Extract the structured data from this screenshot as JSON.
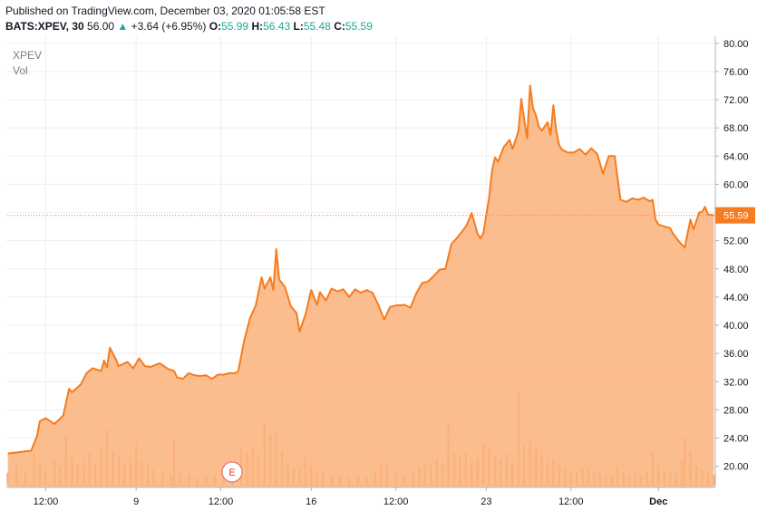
{
  "header": {
    "published": "Published on TradingView.com, December 03, 2020 01:05:58 EST",
    "symbol": "BATS:XPEV, 30",
    "last": "56.00",
    "arrow": "▲",
    "change": "+3.64 (+6.95%)",
    "open_label": "O:",
    "open": "55.99",
    "high_label": "H:",
    "high": "56.43",
    "low_label": "L:",
    "low": "55.48",
    "close_label": "C:",
    "close": "55.59"
  },
  "legend": {
    "name": "XPEV",
    "volume": "Vol"
  },
  "colors": {
    "line": "#f57c1f",
    "area": "#fbb27a",
    "up": "#26a69a",
    "grid": "#eeeeee"
  },
  "event_marker": {
    "label": "E"
  },
  "chart_data": {
    "type": "area",
    "ylim": [
      17.0,
      81.0
    ],
    "y_ticks": [
      "80.00",
      "76.00",
      "72.00",
      "68.00",
      "64.00",
      "60.00",
      "56.00",
      "52.00",
      "48.00",
      "44.00",
      "40.00",
      "36.00",
      "32.00",
      "28.00",
      "24.00",
      "20.00"
    ],
    "x_ticks": [
      "12:00",
      "9",
      "12:00",
      "16",
      "12:00",
      "23",
      "12:00",
      "Dec"
    ],
    "last_price_label": "55.59",
    "last_price": 55.59,
    "bars_count": 243,
    "x_tick_index": [
      13,
      44,
      73,
      104,
      133,
      164,
      193,
      223
    ],
    "price_points": [
      [
        0,
        21.8
      ],
      [
        8,
        22.2
      ],
      [
        10,
        24.3
      ],
      [
        11,
        26.4
      ],
      [
        13,
        26.8
      ],
      [
        16,
        26.0
      ],
      [
        19,
        27.2
      ],
      [
        21,
        31.0
      ],
      [
        22,
        30.5
      ],
      [
        25,
        31.6
      ],
      [
        27,
        33.2
      ],
      [
        29,
        33.9
      ],
      [
        32,
        33.5
      ],
      [
        33,
        35.0
      ],
      [
        34,
        34.0
      ],
      [
        35,
        36.8
      ],
      [
        37,
        35.2
      ],
      [
        38,
        34.2
      ],
      [
        41,
        34.8
      ],
      [
        43,
        33.9
      ],
      [
        45,
        35.3
      ],
      [
        47,
        34.2
      ],
      [
        49,
        34.1
      ],
      [
        52,
        34.6
      ],
      [
        55,
        33.8
      ],
      [
        57,
        33.5
      ],
      [
        58,
        32.6
      ],
      [
        60,
        32.4
      ],
      [
        62,
        33.2
      ],
      [
        64,
        32.9
      ],
      [
        66,
        32.8
      ],
      [
        68,
        32.9
      ],
      [
        70,
        32.4
      ],
      [
        72,
        33.0
      ],
      [
        74,
        33.0
      ],
      [
        76,
        33.2
      ],
      [
        78,
        33.2
      ],
      [
        79,
        33.5
      ],
      [
        81,
        37.8
      ],
      [
        83,
        41.0
      ],
      [
        85,
        42.8
      ],
      [
        87,
        46.8
      ],
      [
        88,
        45.2
      ],
      [
        90,
        46.8
      ],
      [
        91,
        45.0
      ],
      [
        92,
        50.8
      ],
      [
        93,
        46.5
      ],
      [
        95,
        45.4
      ],
      [
        97,
        42.7
      ],
      [
        99,
        41.7
      ],
      [
        100,
        39.1
      ],
      [
        102,
        41.5
      ],
      [
        104,
        45.0
      ],
      [
        106,
        42.9
      ],
      [
        107,
        44.7
      ],
      [
        109,
        43.5
      ],
      [
        111,
        45.2
      ],
      [
        113,
        44.8
      ],
      [
        115,
        45.1
      ],
      [
        117,
        44.0
      ],
      [
        119,
        45.1
      ],
      [
        121,
        44.6
      ],
      [
        123,
        45.0
      ],
      [
        125,
        44.6
      ],
      [
        127,
        42.9
      ],
      [
        129,
        40.8
      ],
      [
        131,
        42.6
      ],
      [
        133,
        42.8
      ],
      [
        136,
        42.9
      ],
      [
        138,
        42.5
      ],
      [
        140,
        44.5
      ],
      [
        142,
        46.0
      ],
      [
        144,
        46.2
      ],
      [
        146,
        47.0
      ],
      [
        148,
        47.9
      ],
      [
        150,
        48.0
      ],
      [
        152,
        51.5
      ],
      [
        154,
        52.4
      ],
      [
        157,
        54.0
      ],
      [
        159,
        55.9
      ],
      [
        161,
        53.0
      ],
      [
        162,
        52.3
      ],
      [
        163,
        53.1
      ],
      [
        165,
        58.2
      ],
      [
        166,
        62.0
      ],
      [
        167,
        63.8
      ],
      [
        168,
        63.2
      ],
      [
        170,
        65.3
      ],
      [
        172,
        66.3
      ],
      [
        173,
        65.0
      ],
      [
        175,
        67.5
      ],
      [
        176,
        72.1
      ],
      [
        177,
        69.2
      ],
      [
        178,
        66.5
      ],
      [
        179,
        74.0
      ],
      [
        180,
        70.8
      ],
      [
        181,
        69.8
      ],
      [
        182,
        68.2
      ],
      [
        183,
        67.6
      ],
      [
        185,
        68.8
      ],
      [
        186,
        67.0
      ],
      [
        187,
        71.2
      ],
      [
        188,
        67.5
      ],
      [
        189,
        65.5
      ],
      [
        190,
        64.9
      ],
      [
        192,
        64.5
      ],
      [
        194,
        64.5
      ],
      [
        196,
        65.0
      ],
      [
        198,
        64.2
      ],
      [
        200,
        65.1
      ],
      [
        202,
        64.3
      ],
      [
        204,
        61.5
      ],
      [
        206,
        64.0
      ],
      [
        208,
        64.0
      ],
      [
        210,
        57.8
      ],
      [
        212,
        57.5
      ],
      [
        214,
        58.0
      ],
      [
        216,
        57.8
      ],
      [
        218,
        58.1
      ],
      [
        220,
        57.6
      ],
      [
        221,
        57.8
      ],
      [
        222,
        55.0
      ],
      [
        223,
        54.3
      ],
      [
        225,
        54.0
      ],
      [
        227,
        53.8
      ],
      [
        228,
        53.0
      ],
      [
        230,
        51.9
      ],
      [
        232,
        51.0
      ],
      [
        234,
        55.0
      ],
      [
        235,
        53.6
      ],
      [
        237,
        56.0
      ],
      [
        238,
        56.1
      ],
      [
        239,
        56.8
      ],
      [
        240,
        55.7
      ],
      [
        242,
        55.6
      ]
    ],
    "volume_points": [
      [
        0,
        1.2
      ],
      [
        3,
        2.0
      ],
      [
        6,
        1.4
      ],
      [
        9,
        3.1
      ],
      [
        11,
        2.2
      ],
      [
        13,
        1.5
      ],
      [
        16,
        2.5
      ],
      [
        18,
        1.8
      ],
      [
        20,
        4.6
      ],
      [
        22,
        2.6
      ],
      [
        24,
        2.0
      ],
      [
        26,
        2.2
      ],
      [
        28,
        3.0
      ],
      [
        30,
        2.0
      ],
      [
        32,
        3.4
      ],
      [
        34,
        5.2
      ],
      [
        36,
        3.3
      ],
      [
        38,
        2.8
      ],
      [
        40,
        2.1
      ],
      [
        42,
        2.6
      ],
      [
        44,
        3.8
      ],
      [
        46,
        2.2
      ],
      [
        48,
        2.0
      ],
      [
        50,
        1.5
      ],
      [
        53,
        1.2
      ],
      [
        56,
        1.0
      ],
      [
        57,
        4.2
      ],
      [
        59,
        1.3
      ],
      [
        62,
        1.1
      ],
      [
        65,
        0.8
      ],
      [
        68,
        1.0
      ],
      [
        71,
        0.9
      ],
      [
        74,
        1.1
      ],
      [
        77,
        1.3
      ],
      [
        80,
        3.5
      ],
      [
        82,
        3.0
      ],
      [
        84,
        3.7
      ],
      [
        86,
        2.9
      ],
      [
        88,
        5.8
      ],
      [
        90,
        4.8
      ],
      [
        92,
        5.0
      ],
      [
        94,
        3.2
      ],
      [
        96,
        2.2
      ],
      [
        98,
        1.7
      ],
      [
        100,
        1.5
      ],
      [
        102,
        2.6
      ],
      [
        104,
        1.8
      ],
      [
        106,
        1.4
      ],
      [
        108,
        1.2
      ],
      [
        111,
        1.0
      ],
      [
        114,
        0.9
      ],
      [
        117,
        0.8
      ],
      [
        120,
        0.9
      ],
      [
        123,
        0.8
      ],
      [
        126,
        1.2
      ],
      [
        128,
        2.2
      ],
      [
        130,
        1.8
      ],
      [
        133,
        1.1
      ],
      [
        136,
        0.9
      ],
      [
        139,
        1.4
      ],
      [
        141,
        1.6
      ],
      [
        143,
        1.9
      ],
      [
        145,
        2.0
      ],
      [
        147,
        2.4
      ],
      [
        149,
        2.1
      ],
      [
        151,
        5.9
      ],
      [
        153,
        3.2
      ],
      [
        155,
        2.8
      ],
      [
        157,
        3.0
      ],
      [
        159,
        2.2
      ],
      [
        161,
        2.6
      ],
      [
        163,
        3.9
      ],
      [
        165,
        3.4
      ],
      [
        167,
        2.7
      ],
      [
        169,
        2.4
      ],
      [
        171,
        3.0
      ],
      [
        173,
        2.2
      ],
      [
        175,
        8.8
      ],
      [
        177,
        3.7
      ],
      [
        179,
        4.1
      ],
      [
        181,
        3.5
      ],
      [
        183,
        2.9
      ],
      [
        185,
        2.2
      ],
      [
        187,
        2.5
      ],
      [
        189,
        1.9
      ],
      [
        191,
        1.6
      ],
      [
        193,
        1.4
      ],
      [
        195,
        1.3
      ],
      [
        197,
        1.5
      ],
      [
        199,
        1.7
      ],
      [
        201,
        1.5
      ],
      [
        203,
        1.2
      ],
      [
        205,
        1.1
      ],
      [
        207,
        1.0
      ],
      [
        209,
        1.8
      ],
      [
        211,
        1.3
      ],
      [
        213,
        1.1
      ],
      [
        215,
        1.2
      ],
      [
        217,
        1.0
      ],
      [
        219,
        1.3
      ],
      [
        221,
        3.2
      ],
      [
        223,
        2.0
      ],
      [
        225,
        1.5
      ],
      [
        227,
        1.3
      ],
      [
        229,
        1.1
      ],
      [
        231,
        2.3
      ],
      [
        232,
        4.4
      ],
      [
        234,
        3.1
      ],
      [
        236,
        1.9
      ],
      [
        238,
        1.5
      ],
      [
        240,
        1.2
      ],
      [
        242,
        1.0
      ]
    ]
  }
}
